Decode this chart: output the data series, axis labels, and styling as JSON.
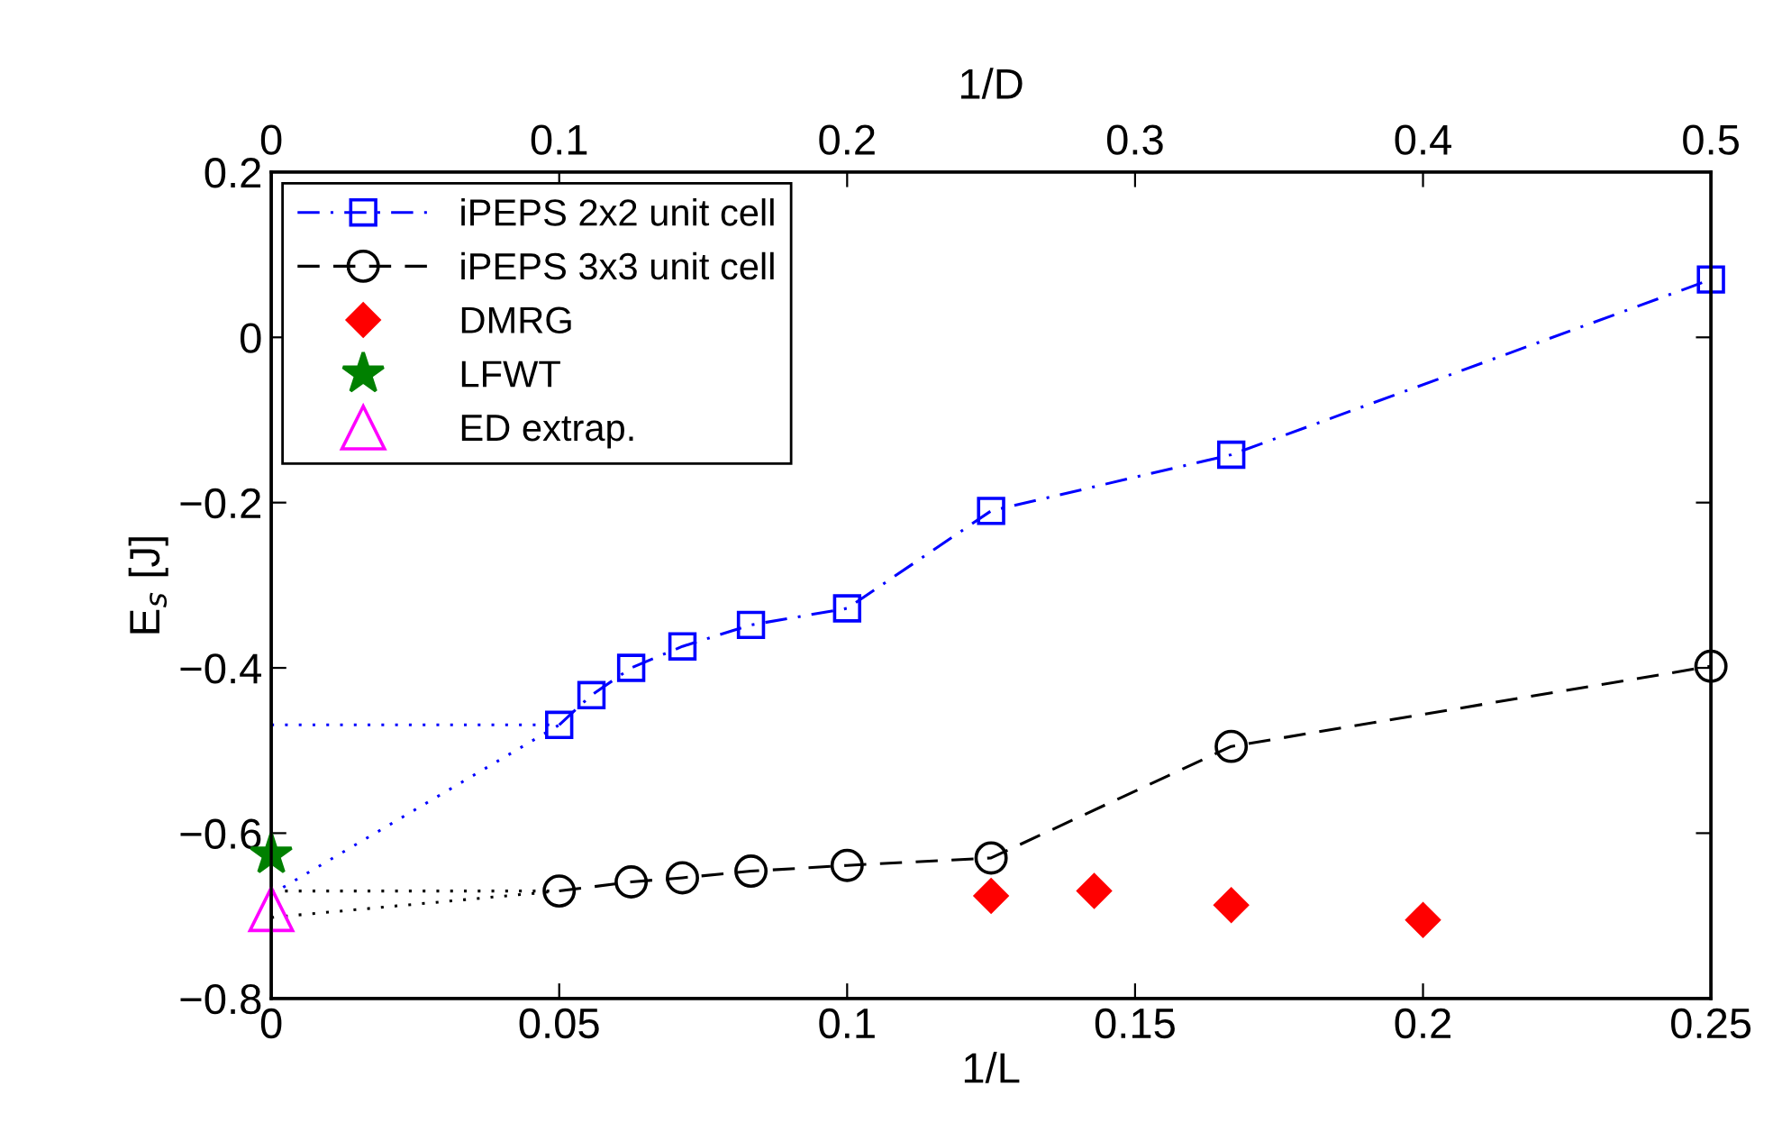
{
  "chart_data": {
    "type": "line",
    "xlabel": "1/L",
    "ylabel": "E$_{s}$ [J]",
    "x2label": "1/D",
    "xlim": [
      0,
      0.25
    ],
    "xticks": [
      0,
      0.05,
      0.1,
      0.15,
      0.2,
      0.25
    ],
    "x2lim": [
      0,
      0.5
    ],
    "x2ticks": [
      0,
      0.1,
      0.2,
      0.3,
      0.4,
      0.5
    ],
    "ylim": [
      -0.8,
      0.2
    ],
    "yticks": [
      {
        "value": -0.8,
        "label": "−0.8"
      },
      {
        "value": -0.6,
        "label": "−0.6"
      },
      {
        "value": -0.4,
        "label": "−0.4"
      },
      {
        "value": -0.2,
        "label": "−0.2"
      },
      0,
      0.2
    ],
    "grid": false,
    "legend": "top left",
    "series": [
      {
        "name": "iPEPS 2x2 unit cell",
        "color": "#0000ff",
        "marker": "square",
        "line_style": "dashdot",
        "x": [
          0.05,
          0.0556,
          0.0625,
          0.0714,
          0.0833,
          0.1,
          0.125,
          0.1667,
          0.25
        ],
        "values": [
          -0.469,
          -0.433,
          -0.4,
          -0.374,
          -0.348,
          -0.328,
          -0.21,
          -0.142,
          0.07
        ]
      },
      {
        "name": "iPEPS 3x3 unit cell",
        "color": "#000000",
        "marker": "circle",
        "line_style": "dashed",
        "x": [
          0.05,
          0.0625,
          0.0714,
          0.0833,
          0.1,
          0.125,
          0.1667,
          0.25
        ],
        "values": [
          -0.67,
          -0.659,
          -0.654,
          -0.646,
          -0.639,
          -0.63,
          -0.495,
          -0.398
        ]
      },
      {
        "name": "DMRG",
        "type": "scatter",
        "color": "#ff0000",
        "marker": "diamond",
        "x": [
          0.125,
          0.1429,
          0.1667,
          0.2
        ],
        "values": [
          -0.676,
          -0.67,
          -0.687,
          -0.705
        ]
      },
      {
        "name": "LFWT",
        "type": "scatter",
        "color": "#008000",
        "marker": "star",
        "x": [
          0
        ],
        "values": [
          -0.626
        ]
      },
      {
        "name": "ED extrap.",
        "type": "scatter",
        "color": "#ff00ff",
        "marker": "triangle",
        "x": [
          0
        ],
        "values": [
          -0.692
        ]
      },
      {
        "color": "#0000ff",
        "marker": "none",
        "line_style": "dotted",
        "x": [
          0,
          0.05
        ],
        "values": [
          -0.469,
          -0.469
        ]
      },
      {
        "color": "#0000ff",
        "marker": "none",
        "line_style": "dotted",
        "x": [
          0,
          0.05
        ],
        "values": [
          -0.674,
          -0.469
        ]
      },
      {
        "color": "#000000",
        "marker": "none",
        "line_style": "dotted",
        "x": [
          0,
          0.05
        ],
        "values": [
          -0.67,
          -0.67
        ]
      },
      {
        "color": "#000000",
        "marker": "none",
        "line_style": "dotted",
        "x": [
          0,
          0.05
        ],
        "values": [
          -0.702,
          -0.67
        ]
      }
    ]
  }
}
